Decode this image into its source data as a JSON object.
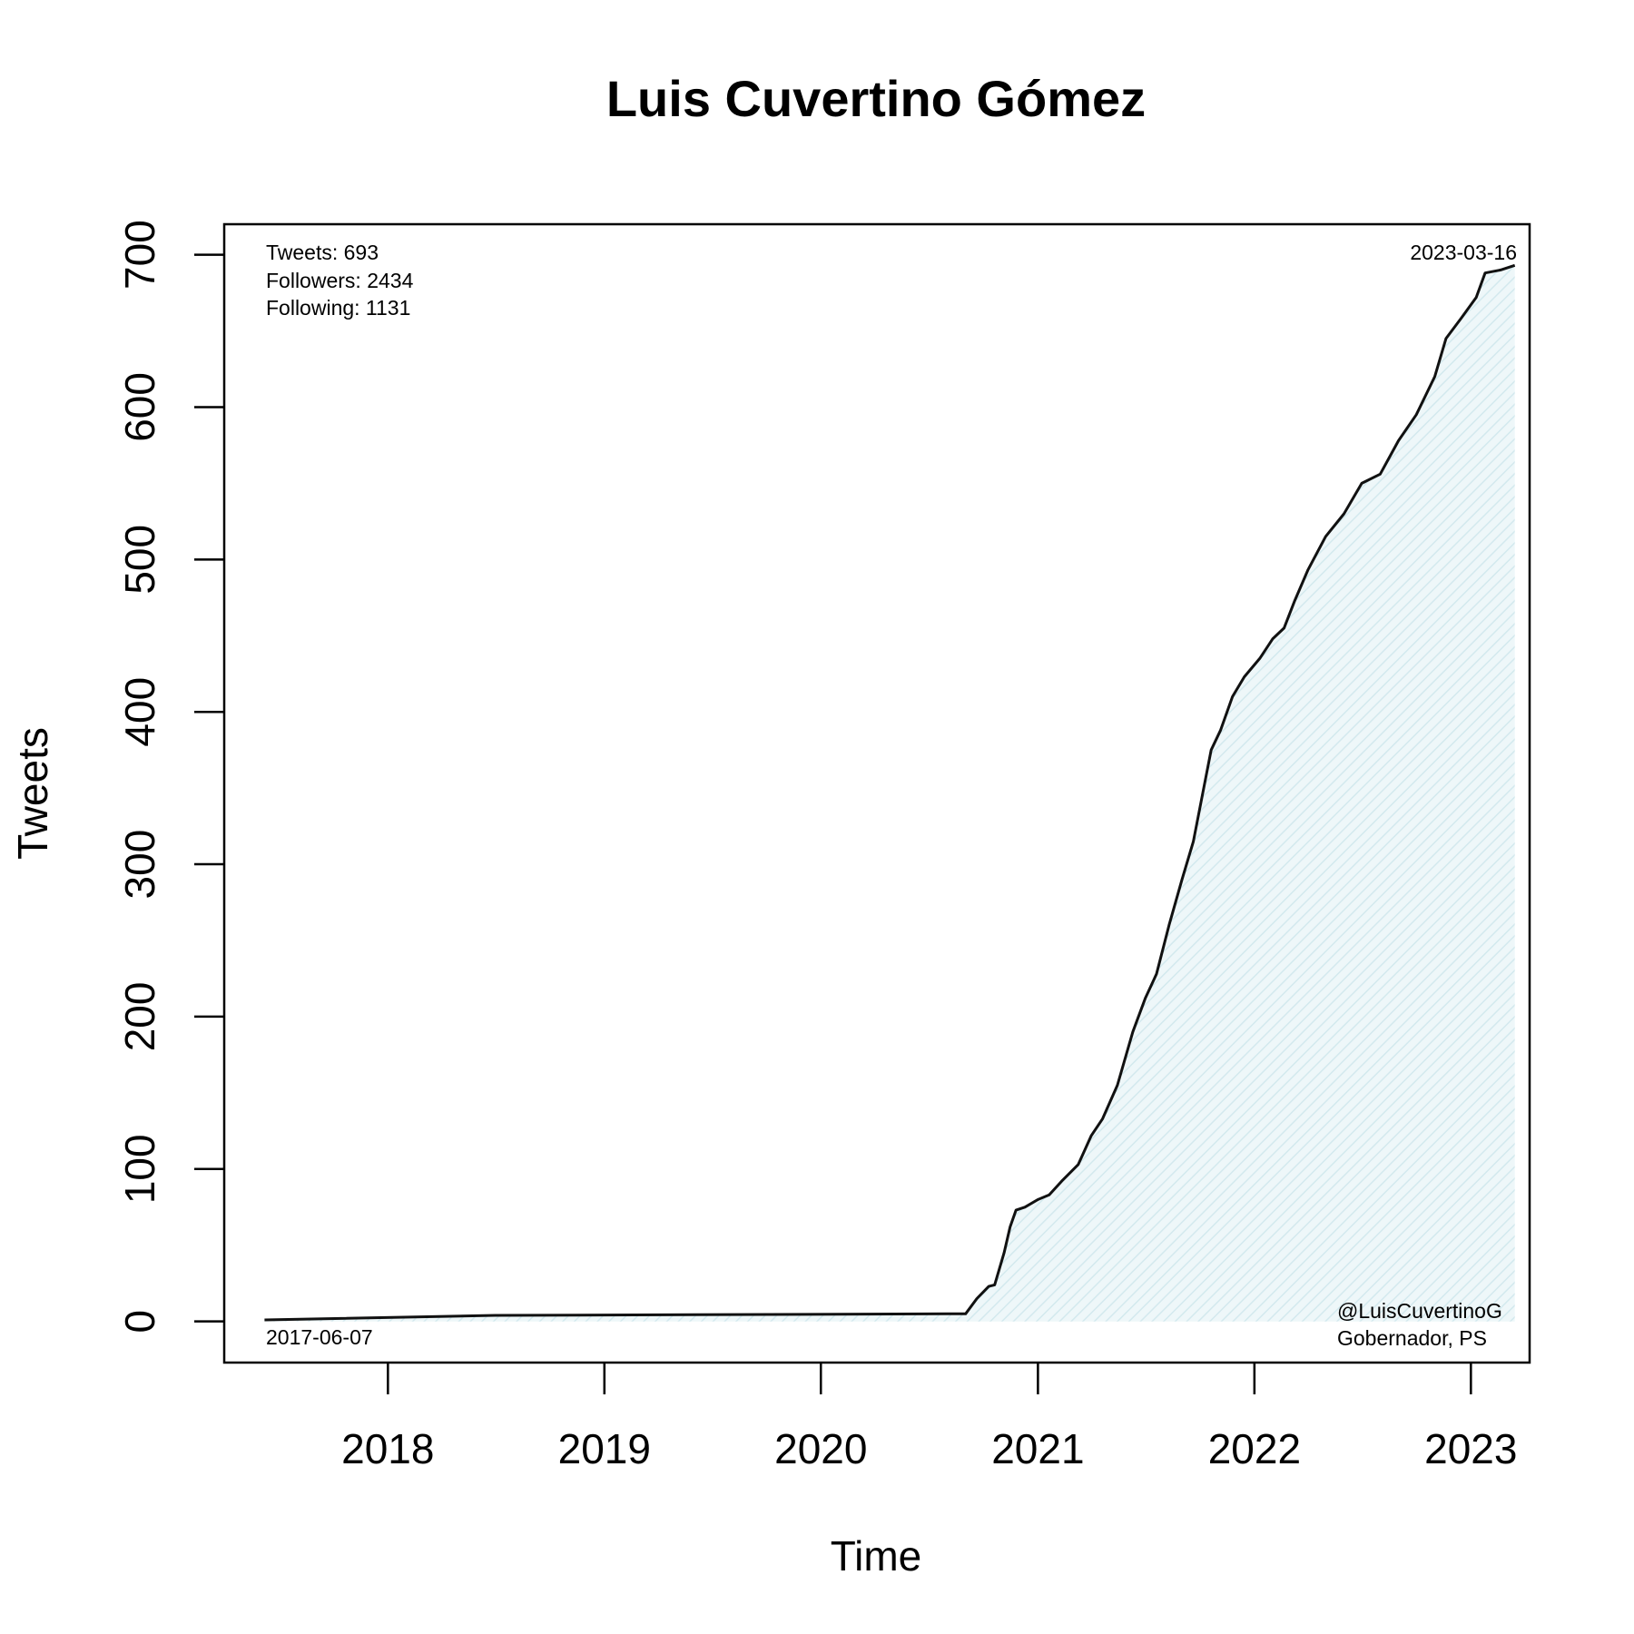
{
  "chart_data": {
    "type": "area",
    "title": "Luis Cuvertino Gómez",
    "xlabel": "Time",
    "ylabel": "Tweets",
    "x_ticks": [
      "2018",
      "2019",
      "2020",
      "2021",
      "2022",
      "2023"
    ],
    "y_ticks": [
      "0",
      "100",
      "200",
      "300",
      "400",
      "500",
      "600",
      "700"
    ],
    "xlim": [
      "2017-03-31",
      "2023-04-10"
    ],
    "ylim": [
      -27,
      720
    ],
    "grid": false,
    "legend": "none",
    "series": [
      {
        "points": [
          [
            "2017-06-07",
            1
          ],
          [
            "2018-07-01",
            4
          ],
          [
            "2020-08-01",
            5
          ],
          [
            "2020-09-01",
            5
          ],
          [
            "2020-09-20",
            15
          ],
          [
            "2020-10-10",
            23
          ],
          [
            "2020-10-20",
            24
          ],
          [
            "2020-11-05",
            45
          ],
          [
            "2020-11-15",
            62
          ],
          [
            "2020-11-25",
            73
          ],
          [
            "2020-12-10",
            75
          ],
          [
            "2021-01-01",
            80
          ],
          [
            "2021-01-20",
            83
          ],
          [
            "2021-02-10",
            92
          ],
          [
            "2021-03-10",
            103
          ],
          [
            "2021-04-01",
            122
          ],
          [
            "2021-04-20",
            133
          ],
          [
            "2021-05-15",
            155
          ],
          [
            "2021-06-10",
            190
          ],
          [
            "2021-07-01",
            212
          ],
          [
            "2021-07-20",
            228
          ],
          [
            "2021-08-10",
            260
          ],
          [
            "2021-09-01",
            290
          ],
          [
            "2021-09-20",
            315
          ],
          [
            "2021-10-05",
            345
          ],
          [
            "2021-10-20",
            375
          ],
          [
            "2021-11-05",
            388
          ],
          [
            "2021-11-25",
            410
          ],
          [
            "2021-12-15",
            423
          ],
          [
            "2022-01-10",
            435
          ],
          [
            "2022-02-01",
            448
          ],
          [
            "2022-02-20",
            455
          ],
          [
            "2022-03-10",
            473
          ],
          [
            "2022-04-01",
            493
          ],
          [
            "2022-05-01",
            515
          ],
          [
            "2022-06-01",
            530
          ],
          [
            "2022-07-01",
            550
          ],
          [
            "2022-08-01",
            556
          ],
          [
            "2022-09-01",
            578
          ],
          [
            "2022-10-01",
            595
          ],
          [
            "2022-11-01",
            620
          ],
          [
            "2022-11-20",
            645
          ],
          [
            "2022-12-15",
            658
          ],
          [
            "2023-01-10",
            672
          ],
          [
            "2023-01-25",
            688
          ],
          [
            "2023-02-20",
            690
          ],
          [
            "2023-03-16",
            693
          ]
        ]
      }
    ],
    "annotations": {
      "tweets": "Tweets: 693",
      "followers": "Followers: 2434",
      "following": "Following: 1131",
      "start_date": "2017-06-07",
      "end_date": "2023-03-16",
      "handle": "@LuisCuvertinoG",
      "role": "Gobernador, PS"
    },
    "colors": {
      "line": "#111111",
      "fill": "#dff0f3",
      "axis": "#000000"
    }
  }
}
